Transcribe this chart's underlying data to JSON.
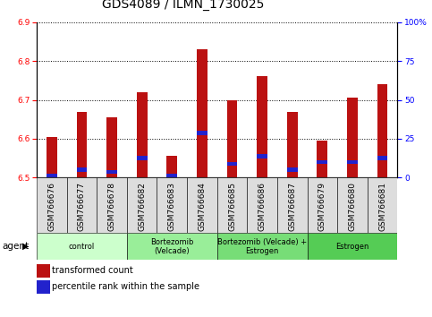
{
  "title": "GDS4089 / ILMN_1730025",
  "samples": [
    "GSM766676",
    "GSM766677",
    "GSM766678",
    "GSM766682",
    "GSM766683",
    "GSM766684",
    "GSM766685",
    "GSM766686",
    "GSM766687",
    "GSM766679",
    "GSM766680",
    "GSM766681"
  ],
  "red_values": [
    6.605,
    6.67,
    6.655,
    6.72,
    6.555,
    6.83,
    6.7,
    6.76,
    6.67,
    6.595,
    6.705,
    6.74
  ],
  "blue_values": [
    6.505,
    6.52,
    6.515,
    6.55,
    6.505,
    6.615,
    6.535,
    6.555,
    6.52,
    6.54,
    6.54,
    6.55
  ],
  "ymin": 6.5,
  "ymax": 6.9,
  "y2min": 0,
  "y2max": 100,
  "yticks": [
    6.5,
    6.6,
    6.7,
    6.8,
    6.9
  ],
  "y2ticks": [
    0,
    25,
    50,
    75,
    100
  ],
  "y2ticklabels": [
    "0",
    "25",
    "50",
    "75",
    "100%"
  ],
  "groups": [
    {
      "label": "control",
      "start": 0,
      "end": 2
    },
    {
      "label": "Bortezomib\n(Velcade)",
      "start": 3,
      "end": 5
    },
    {
      "label": "Bortezomib (Velcade) +\nEstrogen",
      "start": 6,
      "end": 8
    },
    {
      "label": "Estrogen",
      "start": 9,
      "end": 11
    }
  ],
  "group_colors": [
    "#ccffcc",
    "#99ee99",
    "#77dd77",
    "#55cc55"
  ],
  "agent_label": "agent",
  "legend_red": "transformed count",
  "legend_blue": "percentile rank within the sample",
  "bar_color": "#bb1111",
  "dot_color": "#2222cc",
  "bar_width": 0.35,
  "bg_color": "#ffffff",
  "plot_bg": "#ffffff",
  "title_fontsize": 10,
  "tick_fontsize": 6.5,
  "label_fontsize": 7.5
}
